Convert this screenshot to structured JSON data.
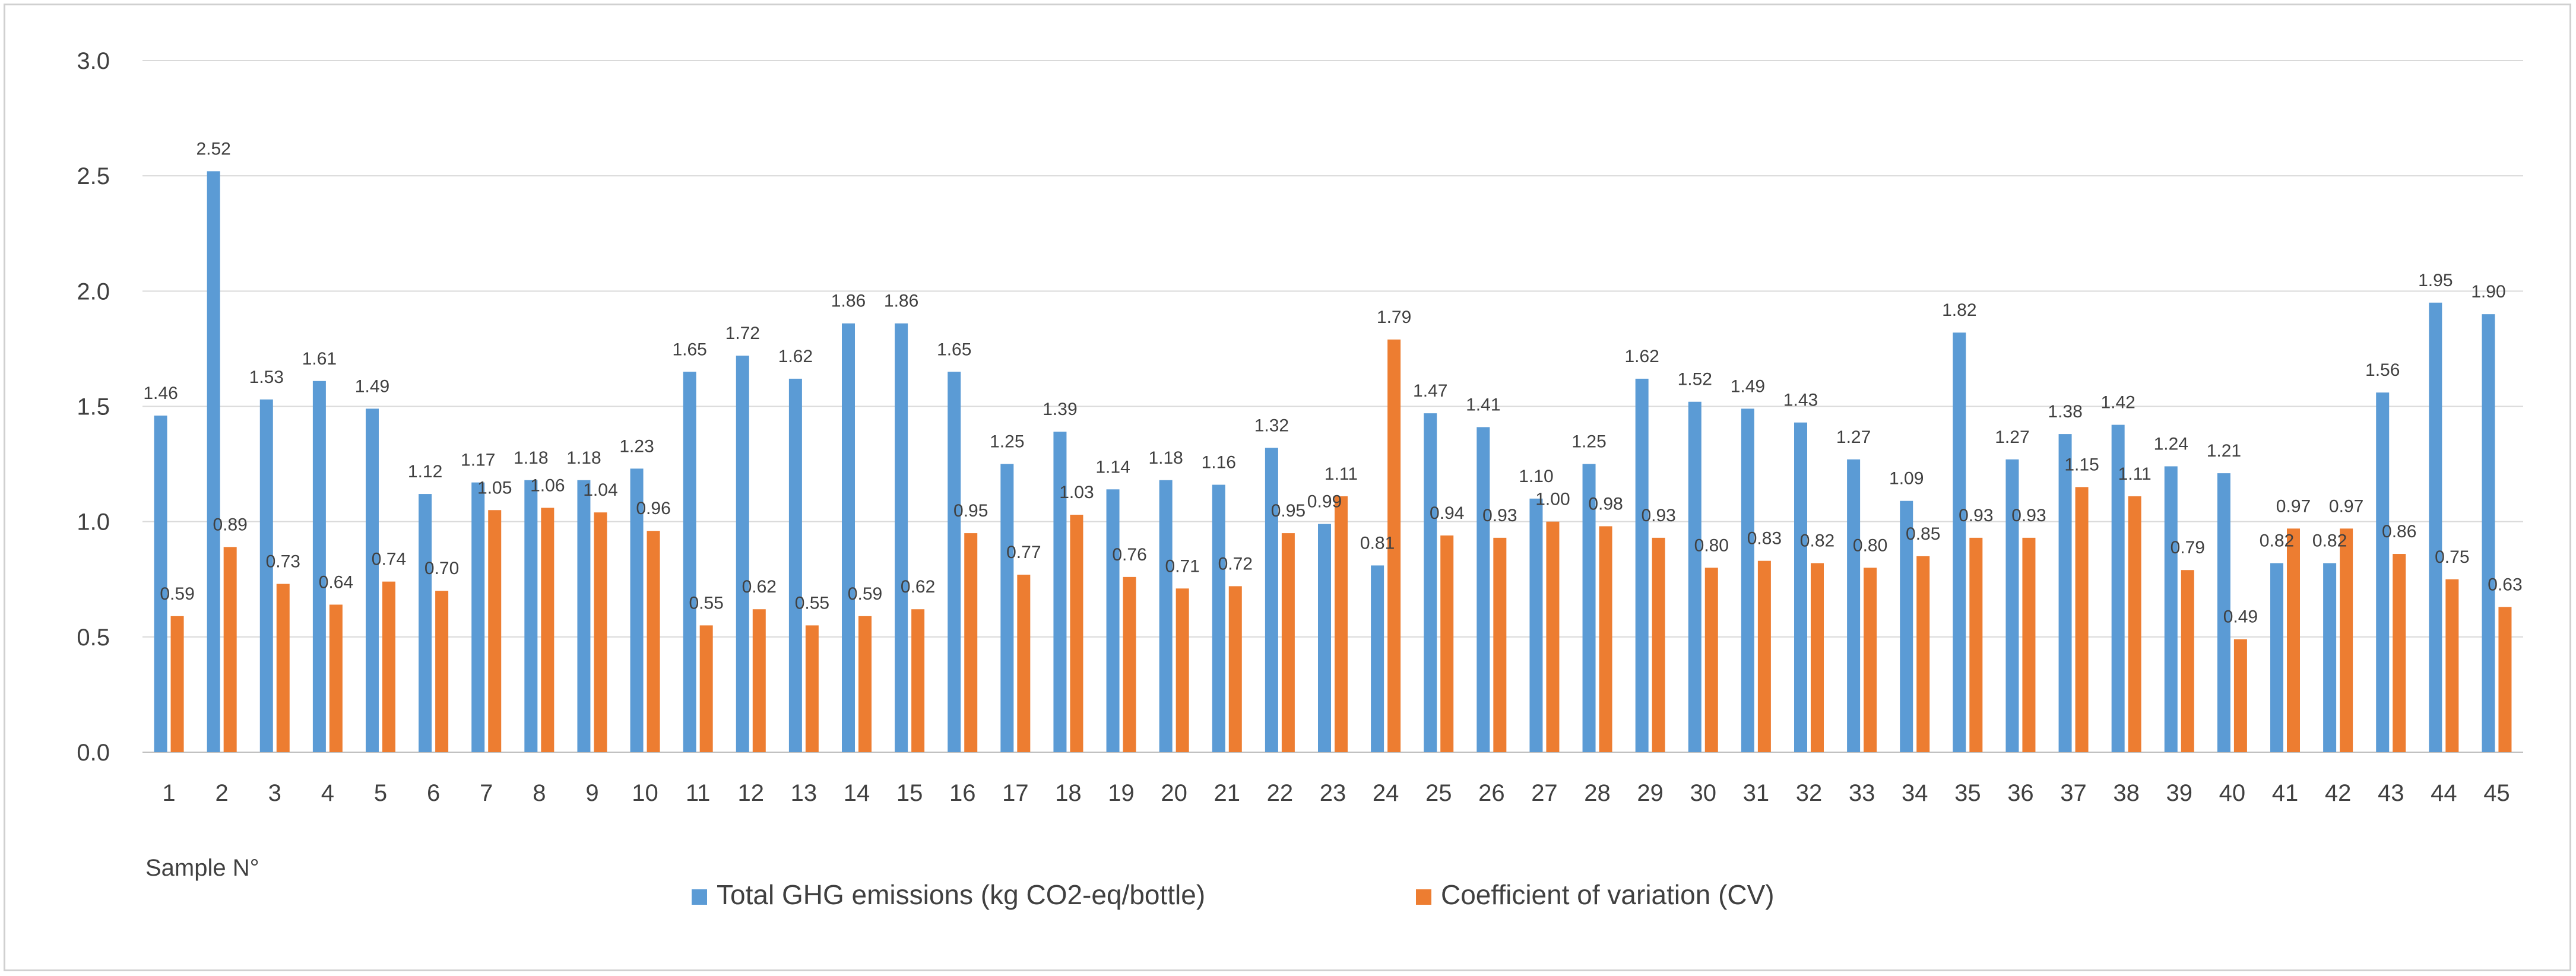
{
  "chart_data": {
    "type": "bar",
    "xlabel": "Sample N°",
    "ylabel": "",
    "ylim": [
      0,
      3.0
    ],
    "yticks": [
      "0.0",
      "0.5",
      "1.0",
      "1.5",
      "2.0",
      "2.5",
      "3.0"
    ],
    "grid": true,
    "legend_position": "bottom-center",
    "categories": [
      "1",
      "2",
      "3",
      "4",
      "5",
      "6",
      "7",
      "8",
      "9",
      "10",
      "11",
      "12",
      "13",
      "14",
      "15",
      "16",
      "17",
      "18",
      "19",
      "20",
      "21",
      "22",
      "23",
      "24",
      "25",
      "26",
      "27",
      "28",
      "29",
      "30",
      "31",
      "32",
      "33",
      "34",
      "35",
      "36",
      "37",
      "38",
      "39",
      "40",
      "41",
      "42",
      "43",
      "44",
      "45"
    ],
    "series": [
      {
        "name": "Total GHG emissions (kg CO2-eq/bottle)",
        "color": "#5b9bd5",
        "values": [
          1.46,
          2.52,
          1.53,
          1.61,
          1.49,
          1.12,
          1.17,
          1.18,
          1.18,
          1.23,
          1.65,
          1.72,
          1.62,
          1.86,
          1.86,
          1.65,
          1.25,
          1.39,
          1.14,
          1.18,
          1.16,
          1.32,
          0.99,
          0.81,
          1.47,
          1.41,
          1.1,
          1.25,
          1.62,
          1.52,
          1.49,
          1.43,
          1.27,
          1.09,
          1.82,
          1.27,
          1.38,
          1.42,
          1.24,
          1.21,
          0.82,
          0.82,
          1.56,
          1.95,
          1.9
        ],
        "labels": [
          "1.46",
          "2.52",
          "1.53",
          "1.61",
          "1.49",
          "1.12",
          "1.17",
          "1.18",
          "1.18",
          "1.23",
          "1.65",
          "1.72",
          "1.62",
          "1.86",
          "1.86",
          "1.65",
          "1.25",
          "1.39",
          "1.14",
          "1.18",
          "1.16",
          "1.32",
          "0.99",
          "0.81",
          "1.47",
          "1.41",
          "1.10",
          "1.25",
          "1.62",
          "1.52",
          "1.49",
          "1.43",
          "1.27",
          "1.09",
          "1.82",
          "1.27",
          "1.38",
          "1.42",
          "1.24",
          "1.21",
          "0.82",
          "0.82",
          "1.56",
          "1.95",
          "1.90"
        ]
      },
      {
        "name": "Coefficient of variation (CV)",
        "color": "#ed7d31",
        "values": [
          0.59,
          0.89,
          0.73,
          0.64,
          0.74,
          0.7,
          1.05,
          1.06,
          1.04,
          0.96,
          0.55,
          0.62,
          0.55,
          0.59,
          0.62,
          0.95,
          0.77,
          1.03,
          0.76,
          0.71,
          0.72,
          0.95,
          1.11,
          1.79,
          0.94,
          0.93,
          1.0,
          0.98,
          0.93,
          0.8,
          0.83,
          0.82,
          0.8,
          0.85,
          0.93,
          0.93,
          1.15,
          1.11,
          0.79,
          0.49,
          0.97,
          0.97,
          0.86,
          0.75,
          0.63
        ],
        "labels": [
          "0.59",
          "0.89",
          "0.73",
          "0.64",
          "0.74",
          "0.70",
          "1.05",
          "1.06",
          "1.04",
          "0.96",
          "0.55",
          "0.62",
          "0.55",
          "0.59",
          "0.62",
          "0.95",
          "0.77",
          "1.03",
          "0.76",
          "0.71",
          "0.72",
          "0.95",
          "1.11",
          "1.79",
          "0.94",
          "0.93",
          "1.00",
          "0.98",
          "0.93",
          "0.80",
          "0.83",
          "0.82",
          "0.80",
          "0.85",
          "0.93",
          "0.93",
          "1.15",
          "1.11",
          "0.79",
          "0.49",
          "0.97",
          "0.97",
          "0.86",
          "0.75",
          "0.63"
        ]
      }
    ],
    "title": ""
  }
}
